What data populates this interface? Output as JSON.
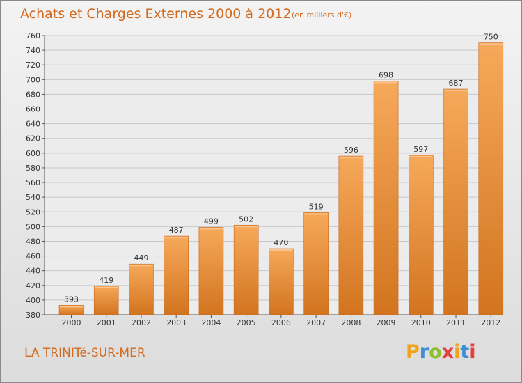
{
  "header": {
    "title": "Achats et Charges Externes 2000 à 2012",
    "subtitle": "(en milliers d'€)"
  },
  "footer": {
    "commune": "LA TRINITé-SUR-MER",
    "brand": "Proxiti",
    "brand_colors": [
      "#f2a31c",
      "#3c8fd6",
      "#8fbf2a",
      "#e63d3d",
      "#f2a31c",
      "#3c8fd6",
      "#e63d3d"
    ]
  },
  "colors": {
    "bar_light": "#f6a95a",
    "bar_dark": "#d2741f",
    "accent": "#d2691e",
    "grid": "#c8c8c8",
    "plot_bg": "#ececec"
  },
  "chart_data": {
    "type": "bar",
    "title": "Achats et Charges Externes 2000 à 2012",
    "subtitle": "(en milliers d'€)",
    "categories": [
      "2000",
      "2001",
      "2002",
      "2003",
      "2004",
      "2005",
      "2006",
      "2007",
      "2008",
      "2009",
      "2010",
      "2011",
      "2012"
    ],
    "values": [
      393,
      419,
      449,
      487,
      499,
      502,
      470,
      519,
      596,
      698,
      597,
      687,
      750
    ],
    "ylim": [
      380,
      760
    ],
    "yticks": [
      380,
      400,
      420,
      440,
      460,
      480,
      500,
      520,
      540,
      560,
      580,
      600,
      620,
      640,
      660,
      680,
      700,
      720,
      740,
      760
    ],
    "grid": true,
    "xlabel": "",
    "ylabel": ""
  }
}
